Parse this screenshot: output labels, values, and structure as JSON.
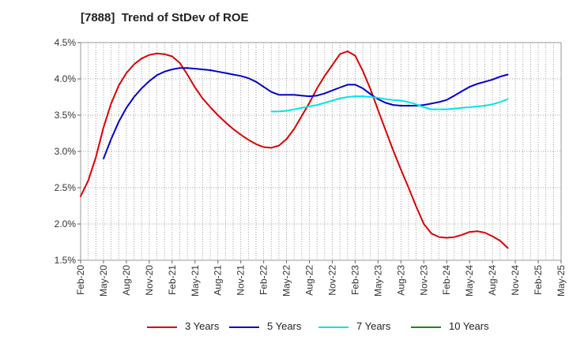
{
  "chart_data": {
    "type": "line",
    "title": "[7888]  Trend of StDev of ROE",
    "xlabel": "",
    "ylabel": "",
    "ylim": [
      1.5,
      4.5
    ],
    "yticks": [
      1.5,
      2.0,
      2.5,
      3.0,
      3.5,
      4.0,
      4.5
    ],
    "ytick_labels": [
      "1.5%",
      "2.0%",
      "2.5%",
      "3.0%",
      "3.5%",
      "4.0%",
      "4.5%"
    ],
    "x_categories": [
      "Feb-20",
      "May-20",
      "Aug-20",
      "Nov-20",
      "Feb-21",
      "May-21",
      "Aug-21",
      "Nov-21",
      "Feb-22",
      "May-22",
      "Aug-22",
      "Nov-22",
      "Feb-23",
      "May-23",
      "Aug-23",
      "Nov-23",
      "Feb-24",
      "May-24",
      "Aug-24",
      "Nov-24",
      "Feb-25",
      "May-25"
    ],
    "grid": true,
    "legend_position": "bottom",
    "series": [
      {
        "name": "3 Years",
        "color": "#dd0000",
        "values": [
          [
            0,
            2.38
          ],
          [
            1,
            2.6
          ],
          [
            2,
            2.92
          ],
          [
            3,
            3.33
          ],
          [
            4,
            3.66
          ],
          [
            5,
            3.91
          ],
          [
            6,
            4.08
          ],
          [
            7,
            4.2
          ],
          [
            8,
            4.28
          ],
          [
            9,
            4.33
          ],
          [
            10,
            4.35
          ],
          [
            11,
            4.34
          ],
          [
            12,
            4.31
          ],
          [
            13,
            4.22
          ],
          [
            14,
            4.06
          ],
          [
            15,
            3.88
          ],
          [
            16,
            3.73
          ],
          [
            17,
            3.61
          ],
          [
            18,
            3.5
          ],
          [
            19,
            3.4
          ],
          [
            20,
            3.31
          ],
          [
            21,
            3.23
          ],
          [
            22,
            3.16
          ],
          [
            23,
            3.1
          ],
          [
            24,
            3.06
          ],
          [
            25,
            3.05
          ],
          [
            26,
            3.08
          ],
          [
            27,
            3.17
          ],
          [
            28,
            3.31
          ],
          [
            29,
            3.49
          ],
          [
            30,
            3.67
          ],
          [
            31,
            3.87
          ],
          [
            32,
            4.04
          ],
          [
            33,
            4.19
          ],
          [
            34,
            4.34
          ],
          [
            35,
            4.38
          ],
          [
            36,
            4.32
          ],
          [
            37,
            4.11
          ],
          [
            38,
            3.86
          ],
          [
            39,
            3.57
          ],
          [
            40,
            3.29
          ],
          [
            41,
            3.01
          ],
          [
            42,
            2.75
          ],
          [
            43,
            2.5
          ],
          [
            44,
            2.24
          ],
          [
            45,
            2.0
          ],
          [
            46,
            1.87
          ],
          [
            47,
            1.82
          ],
          [
            48,
            1.81
          ],
          [
            49,
            1.82
          ],
          [
            50,
            1.85
          ],
          [
            51,
            1.89
          ],
          [
            52,
            1.9
          ],
          [
            53,
            1.88
          ],
          [
            54,
            1.83
          ],
          [
            55,
            1.77
          ],
          [
            56,
            1.67
          ]
        ]
      },
      {
        "name": "5 Years",
        "color": "#0000cc",
        "values": [
          [
            3,
            2.9
          ],
          [
            4,
            3.17
          ],
          [
            5,
            3.41
          ],
          [
            6,
            3.6
          ],
          [
            7,
            3.75
          ],
          [
            8,
            3.87
          ],
          [
            9,
            3.97
          ],
          [
            10,
            4.05
          ],
          [
            11,
            4.1
          ],
          [
            12,
            4.13
          ],
          [
            13,
            4.15
          ],
          [
            14,
            4.15
          ],
          [
            15,
            4.14
          ],
          [
            16,
            4.13
          ],
          [
            17,
            4.12
          ],
          [
            18,
            4.1
          ],
          [
            19,
            4.08
          ],
          [
            20,
            4.06
          ],
          [
            21,
            4.04
          ],
          [
            22,
            4.01
          ],
          [
            23,
            3.96
          ],
          [
            24,
            3.89
          ],
          [
            25,
            3.82
          ],
          [
            26,
            3.78
          ],
          [
            27,
            3.78
          ],
          [
            28,
            3.78
          ],
          [
            29,
            3.77
          ],
          [
            30,
            3.76
          ],
          [
            31,
            3.77
          ],
          [
            32,
            3.8
          ],
          [
            33,
            3.84
          ],
          [
            34,
            3.88
          ],
          [
            35,
            3.92
          ],
          [
            36,
            3.92
          ],
          [
            37,
            3.87
          ],
          [
            38,
            3.79
          ],
          [
            39,
            3.72
          ],
          [
            40,
            3.67
          ],
          [
            41,
            3.64
          ],
          [
            42,
            3.63
          ],
          [
            43,
            3.63
          ],
          [
            44,
            3.63
          ],
          [
            45,
            3.64
          ],
          [
            46,
            3.66
          ],
          [
            47,
            3.68
          ],
          [
            48,
            3.71
          ],
          [
            49,
            3.77
          ],
          [
            50,
            3.83
          ],
          [
            51,
            3.89
          ],
          [
            52,
            3.93
          ],
          [
            53,
            3.96
          ],
          [
            54,
            3.99
          ],
          [
            55,
            4.03
          ],
          [
            56,
            4.06
          ]
        ]
      },
      {
        "name": "7 Years",
        "color": "#00e5e5",
        "values": [
          [
            25,
            3.55
          ],
          [
            26,
            3.55
          ],
          [
            27,
            3.56
          ],
          [
            28,
            3.58
          ],
          [
            29,
            3.6
          ],
          [
            30,
            3.62
          ],
          [
            31,
            3.64
          ],
          [
            32,
            3.67
          ],
          [
            33,
            3.7
          ],
          [
            34,
            3.73
          ],
          [
            35,
            3.75
          ],
          [
            36,
            3.76
          ],
          [
            37,
            3.76
          ],
          [
            38,
            3.75
          ],
          [
            39,
            3.74
          ],
          [
            40,
            3.72
          ],
          [
            41,
            3.71
          ],
          [
            42,
            3.7
          ],
          [
            43,
            3.68
          ],
          [
            44,
            3.65
          ],
          [
            45,
            3.61
          ],
          [
            46,
            3.58
          ],
          [
            47,
            3.58
          ],
          [
            48,
            3.58
          ],
          [
            49,
            3.59
          ],
          [
            50,
            3.6
          ],
          [
            51,
            3.61
          ],
          [
            52,
            3.62
          ],
          [
            53,
            3.63
          ],
          [
            54,
            3.65
          ],
          [
            55,
            3.68
          ],
          [
            56,
            3.72
          ]
        ]
      },
      {
        "name": "10 Years",
        "color": "#1a8a1a",
        "values": []
      }
    ]
  }
}
